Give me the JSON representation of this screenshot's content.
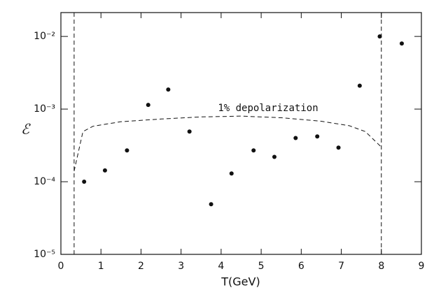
{
  "chart_data": {
    "type": "scatter",
    "x_label": "T(GeV)",
    "y_label": "ℰ",
    "log_y": true,
    "xlim": [
      0,
      9
    ],
    "ylim": [
      1e-05,
      0.0213
    ],
    "xticks": [
      0,
      1,
      2,
      3,
      4,
      5,
      6,
      7,
      8,
      9
    ],
    "yticks": [
      {
        "value": 1e-05,
        "label": "10⁻⁵"
      },
      {
        "value": 0.0001,
        "label": "10⁻⁴"
      },
      {
        "value": 0.001,
        "label": "10⁻³"
      },
      {
        "value": 0.01,
        "label": "10⁻²"
      }
    ],
    "color": "#111111",
    "x": [
      0.58,
      1.1,
      1.65,
      2.18,
      2.68,
      3.21,
      3.75,
      4.26,
      4.81,
      5.33,
      5.86,
      6.4,
      6.93,
      7.46,
      7.96,
      8.51
    ],
    "values": [
      0.0001,
      0.000143,
      0.00027,
      0.00114,
      0.00186,
      0.00049,
      4.9e-05,
      0.00013,
      0.00027,
      0.00022,
      0.0004,
      0.00042,
      0.000295,
      0.0021,
      0.01,
      0.008
    ],
    "curve": {
      "label": "1% depolarization",
      "x": [
        0.33,
        0.55,
        0.8,
        1.5,
        2.5,
        3.5,
        4.5,
        5.5,
        6.5,
        7.2,
        7.6,
        8.0
      ],
      "values": [
        0.00014,
        0.00049,
        0.00058,
        0.00067,
        0.00073,
        0.00078,
        0.0008,
        0.00076,
        0.00068,
        0.00059,
        0.00049,
        0.0003
      ]
    },
    "vlines": [
      0.33,
      8.0
    ]
  }
}
